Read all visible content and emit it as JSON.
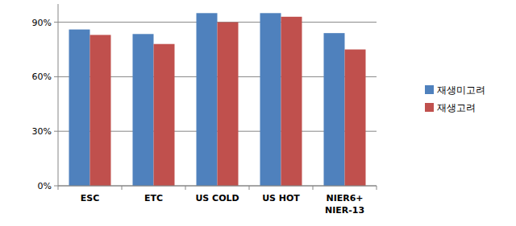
{
  "chart_data": {
    "type": "bar",
    "categories": [
      "ESC",
      "ETC",
      "US COLD",
      "US HOT",
      "NIER6+\nNIER-13"
    ],
    "series": [
      {
        "name": "재생미고려",
        "color": "#4f81bd",
        "values": [
          86,
          83.5,
          95,
          95,
          84
        ]
      },
      {
        "name": "재생고려",
        "color": "#c0504d",
        "values": [
          83,
          78,
          90,
          93,
          75
        ]
      }
    ],
    "ylim": [
      0,
      100
    ],
    "yticks": [
      {
        "value": 0,
        "label": "0%"
      },
      {
        "value": 30,
        "label": "30%"
      },
      {
        "value": 60,
        "label": "60%"
      },
      {
        "value": 90,
        "label": "90%"
      }
    ],
    "grid": true,
    "legend": "right"
  }
}
